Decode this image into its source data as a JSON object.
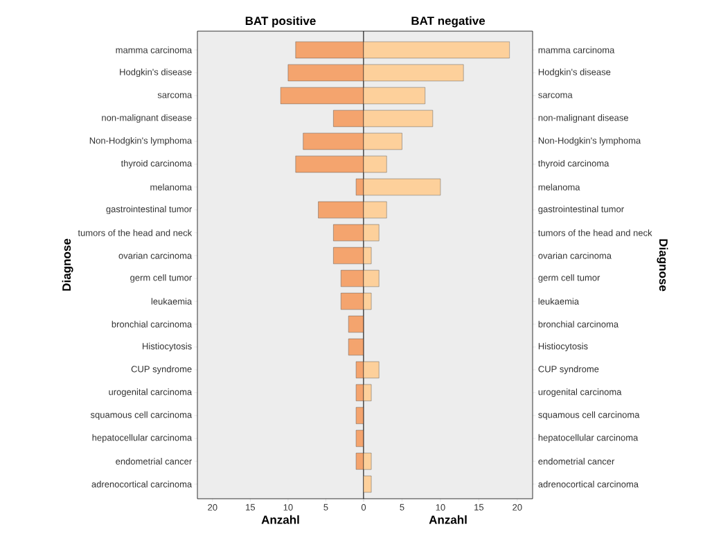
{
  "chart_data": [
    {
      "type": "bar",
      "orientation": "horizontal",
      "title": "BAT positive",
      "xlabel": "Anzahl",
      "ylabel": "Diagnose",
      "categories": [
        "mamma carcinoma",
        "Hodgkin's disease",
        "sarcoma",
        "non-malignant disease",
        "Non-Hodgkin's lymphoma",
        "thyroid carcinoma",
        "melanoma",
        "gastrointestinal tumor",
        "tumors of the head and neck",
        "ovarian carcinoma",
        "germ cell tumor",
        "leukaemia",
        "bronchial carcinoma",
        "Histiocytosis",
        "CUP syndrome",
        "urogenital carcinoma",
        "squamous cell carcinoma",
        "hepatocellular carcinoma",
        "endometrial cancer",
        "adrenocortical carcinoma"
      ],
      "values": [
        9,
        10,
        11,
        4,
        8,
        9,
        1,
        6,
        4,
        4,
        3,
        3,
        2,
        2,
        1,
        1,
        1,
        1,
        1,
        0
      ],
      "color": "#f4a46e",
      "xlim": [
        22,
        0
      ],
      "xticks": [
        20,
        15,
        10,
        5,
        {
          "value": 0,
          "label": null
        }
      ]
    },
    {
      "type": "bar",
      "orientation": "horizontal",
      "title": "BAT negative",
      "xlabel": "Anzahl",
      "ylabel": "Diagnose",
      "categories": [
        "mamma carcinoma",
        "Hodgkin's disease",
        "sarcoma",
        "non-malignant disease",
        "Non-Hodgkin's lymphoma",
        "thyroid carcinoma",
        "melanoma",
        "gastrointestinal tumor",
        "tumors of the head and neck",
        "ovarian carcinoma",
        "germ cell tumor",
        "leukaemia",
        "bronchial carcinoma",
        "Histiocytosis",
        "CUP syndrome",
        "urogenital carcinoma",
        "squamous cell carcinoma",
        "hepatocellular carcinoma",
        "endometrial cancer",
        "adrenocortical carcinoma"
      ],
      "values": [
        19,
        13,
        8,
        9,
        5,
        3,
        10,
        3,
        2,
        1,
        2,
        1,
        0,
        0,
        2,
        1,
        0,
        0,
        1,
        1
      ],
      "color": "#fdd09b",
      "xlim": [
        0,
        22
      ],
      "xticks": [
        0,
        5,
        10,
        15,
        20
      ]
    }
  ]
}
